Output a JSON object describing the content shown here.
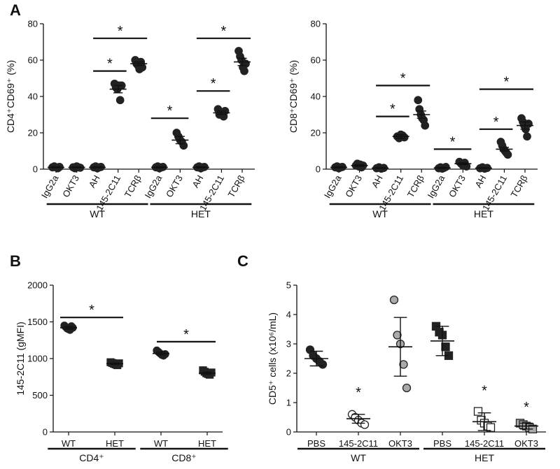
{
  "chart_data": [
    {
      "panel": "A",
      "type": "scatter",
      "ylabel": "CD4⁺CD69⁺ (%)",
      "ylim": [
        0,
        80
      ],
      "yticks": [
        "0",
        "20",
        "40",
        "60",
        "80"
      ],
      "categories": [
        "IgG2a",
        "OKT3",
        "AH",
        "145-2C11",
        "TCRβ",
        "IgG2a",
        "OKT3",
        "AH",
        "145-2C11",
        "TCRβ"
      ],
      "groups": [
        {
          "name": "WT",
          "from": 0,
          "to": 4
        },
        {
          "name": "HET",
          "from": 5,
          "to": 9
        }
      ],
      "points": [
        [
          1,
          1.5,
          1,
          0.5,
          1.2
        ],
        [
          1,
          0.5,
          1.5,
          1,
          0.8
        ],
        [
          1,
          1.5,
          0.5,
          1,
          1.2
        ],
        [
          47,
          45,
          44,
          46,
          38,
          46
        ],
        [
          60,
          58,
          57,
          55,
          59,
          56
        ],
        [
          1,
          1.5,
          0.5,
          1,
          1.2
        ],
        [
          20,
          18,
          16,
          15,
          13
        ],
        [
          1,
          1.5,
          0.5,
          1,
          1.2
        ],
        [
          33,
          30,
          31,
          30,
          29,
          32
        ],
        [
          65,
          62,
          60,
          56,
          54,
          58
        ]
      ],
      "means": [
        1,
        1,
        1,
        44,
        58,
        1,
        16,
        1,
        31,
        59
      ],
      "errors": [
        0.3,
        0.3,
        0.3,
        2,
        1,
        0.3,
        2,
        0.3,
        1,
        2
      ],
      "significance": [
        {
          "from": 2,
          "to": 3,
          "y": 54,
          "label": "*"
        },
        {
          "from": 2,
          "to": 4,
          "y": 72,
          "label": "*"
        },
        {
          "from": 5,
          "to": 6,
          "y": 28,
          "label": "*"
        },
        {
          "from": 7,
          "to": 8,
          "y": 43,
          "label": "*"
        },
        {
          "from": 7,
          "to": 9,
          "y": 72,
          "label": "*"
        }
      ]
    },
    {
      "panel": "",
      "type": "scatter",
      "ylabel": "CD8⁺CD69⁺ (%)",
      "ylim": [
        0,
        80
      ],
      "yticks": [
        "0",
        "20",
        "40",
        "60",
        "80"
      ],
      "categories": [
        "IgG2a",
        "OKT3",
        "AH",
        "145-2C11",
        "TCRβ",
        "IgG2a",
        "OKT3",
        "AH",
        "145-2C11",
        "TCRβ"
      ],
      "groups": [
        {
          "name": "WT",
          "from": 0,
          "to": 4
        },
        {
          "name": "HET",
          "from": 5,
          "to": 9
        }
      ],
      "points": [
        [
          1,
          1.5,
          0.5,
          1,
          1.2
        ],
        [
          2,
          3,
          1.5,
          2.5,
          1,
          2
        ],
        [
          0.5,
          1,
          0.3,
          0.7
        ],
        [
          18,
          17,
          19,
          18.5,
          17.5
        ],
        [
          38,
          33,
          30,
          28,
          27,
          24
        ],
        [
          0.5,
          1,
          0.3,
          0.7,
          1.2
        ],
        [
          4,
          3,
          2,
          3.5,
          1.5
        ],
        [
          0.5,
          1,
          0.3,
          0.7
        ],
        [
          15,
          13,
          11,
          10,
          9,
          8
        ],
        [
          28,
          26,
          24,
          22,
          18,
          25
        ]
      ],
      "means": [
        1,
        2,
        0.6,
        18,
        30,
        0.7,
        3,
        0.6,
        11,
        24
      ],
      "errors": [
        0.3,
        0.5,
        0.2,
        1,
        2,
        0.3,
        0.5,
        0.2,
        1,
        2
      ],
      "significance": [
        {
          "from": 2,
          "to": 3,
          "y": 29,
          "label": "*"
        },
        {
          "from": 2,
          "to": 4,
          "y": 46,
          "label": "*"
        },
        {
          "from": 5,
          "to": 6,
          "y": 11,
          "label": "*"
        },
        {
          "from": 7,
          "to": 8,
          "y": 22,
          "label": "*"
        },
        {
          "from": 7,
          "to": 9,
          "y": 44,
          "label": "*"
        }
      ]
    },
    {
      "panel": "B",
      "type": "scatter",
      "ylabel": "145-2C11 (gMFI)",
      "ylim": [
        0,
        2000
      ],
      "yticks": [
        "0",
        "500",
        "1000",
        "1500",
        "2000"
      ],
      "categories": [
        "WT",
        "HET",
        "WT",
        "HET"
      ],
      "groups": [
        {
          "name": "CD4⁺",
          "from": 0,
          "to": 1
        },
        {
          "name": "CD8⁺",
          "from": 2,
          "to": 3
        }
      ],
      "points": [
        [
          1450,
          1430,
          1410,
          1400,
          1390,
          1440,
          1420
        ],
        [
          950,
          940,
          930,
          920,
          910,
          935
        ],
        [
          1110,
          1090,
          1070,
          1050,
          1040,
          1060
        ],
        [
          840,
          820,
          800,
          790,
          780,
          810
        ]
      ],
      "means": [
        1420,
        930,
        1070,
        800
      ],
      "errors": [
        20,
        10,
        20,
        15
      ],
      "significance": [
        {
          "from": 0,
          "to": 1,
          "y": 1560,
          "label": "*"
        },
        {
          "from": 2,
          "to": 3,
          "y": 1230,
          "label": "*"
        }
      ]
    },
    {
      "panel": "C",
      "type": "scatter",
      "ylabel": "CD5⁺ cells (x10⁶/mL)",
      "ylim": [
        0,
        5
      ],
      "yticks": [
        "0",
        "1",
        "2",
        "3",
        "4",
        "5"
      ],
      "categories": [
        "PBS",
        "145-2C11",
        "OKT3",
        "PBS",
        "145-2C11",
        "OKT3"
      ],
      "groups": [
        {
          "name": "WT",
          "from": 0,
          "to": 2
        },
        {
          "name": "HET",
          "from": 3,
          "to": 5
        }
      ],
      "points": [
        [
          2.8,
          2.6,
          2.5,
          2.4,
          2.3
        ],
        [
          0.6,
          0.5,
          0.4,
          0.3,
          0.25
        ],
        [
          4.5,
          3.3,
          3.0,
          2.3,
          1.5
        ],
        [
          3.6,
          3.4,
          3.3,
          2.9,
          2.6
        ],
        [
          0.7,
          0.4,
          0.3,
          0.2,
          0.15
        ],
        [
          0.3,
          0.25,
          0.2,
          0.15,
          0.1
        ]
      ],
      "means": [
        2.5,
        0.45,
        2.9,
        3.1,
        0.35,
        0.2
      ],
      "errors": [
        0.25,
        0.15,
        1.0,
        0.5,
        0.3,
        0.1
      ],
      "significance": [
        {
          "from": 1,
          "to": 1,
          "y": 1.1,
          "label": "*"
        },
        {
          "from": 4,
          "to": 4,
          "y": 1.15,
          "label": "*"
        },
        {
          "from": 5,
          "to": 5,
          "y": 0.6,
          "label": "*"
        }
      ]
    }
  ]
}
